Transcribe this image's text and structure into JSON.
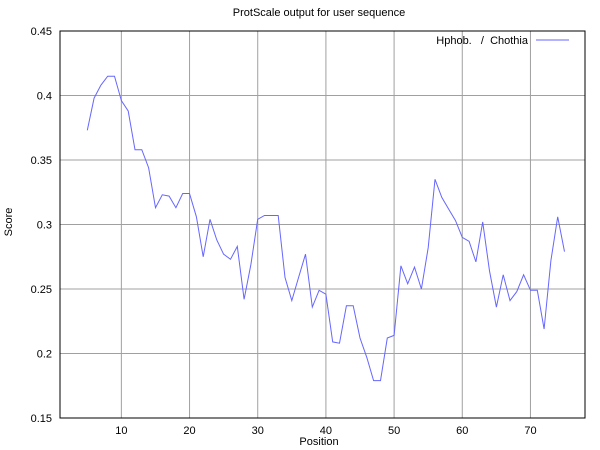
{
  "chart_data": {
    "type": "line",
    "title": "ProtScale output for user sequence",
    "xlabel": "Position",
    "ylabel": "Score",
    "xlim": [
      1,
      78
    ],
    "ylim": [
      0.15,
      0.45
    ],
    "x_ticks": [
      10,
      20,
      30,
      40,
      50,
      60,
      70
    ],
    "y_ticks": [
      0.15,
      0.2,
      0.25,
      0.3,
      0.35,
      0.4,
      0.45
    ],
    "y_tick_labels": [
      "0.15",
      "0.2",
      "0.25",
      "0.3",
      "0.35",
      "0.4",
      "0.45"
    ],
    "grid": true,
    "legend_position": "top-right",
    "series": [
      {
        "name": "Hphob.   /  Chothia",
        "color": "#6666ff",
        "x": [
          5,
          6,
          7,
          8,
          9,
          10,
          11,
          12,
          13,
          14,
          15,
          16,
          17,
          18,
          19,
          20,
          21,
          22,
          23,
          24,
          25,
          26,
          27,
          28,
          29,
          30,
          31,
          32,
          33,
          34,
          35,
          36,
          37,
          38,
          39,
          40,
          41,
          42,
          43,
          44,
          45,
          46,
          47,
          48,
          49,
          50,
          51,
          52,
          53,
          54,
          55,
          56,
          57,
          58,
          59,
          60,
          61,
          62,
          63,
          64,
          65,
          66,
          67,
          68,
          69,
          70,
          71,
          72,
          73,
          74,
          75
        ],
        "values": [
          0.373,
          0.398,
          0.408,
          0.415,
          0.415,
          0.396,
          0.388,
          0.358,
          0.358,
          0.344,
          0.313,
          0.323,
          0.322,
          0.313,
          0.324,
          0.324,
          0.306,
          0.275,
          0.304,
          0.288,
          0.277,
          0.273,
          0.283,
          0.242,
          0.269,
          0.304,
          0.307,
          0.307,
          0.307,
          0.259,
          0.241,
          0.259,
          0.277,
          0.236,
          0.249,
          0.246,
          0.209,
          0.208,
          0.237,
          0.237,
          0.212,
          0.197,
          0.179,
          0.179,
          0.212,
          0.214,
          0.268,
          0.254,
          0.267,
          0.25,
          0.282,
          0.335,
          0.321,
          0.312,
          0.303,
          0.29,
          0.287,
          0.271,
          0.302,
          0.264,
          0.236,
          0.261,
          0.241,
          0.248,
          0.261,
          0.249,
          0.249,
          0.219,
          0.272,
          0.306,
          0.279
        ]
      }
    ]
  }
}
